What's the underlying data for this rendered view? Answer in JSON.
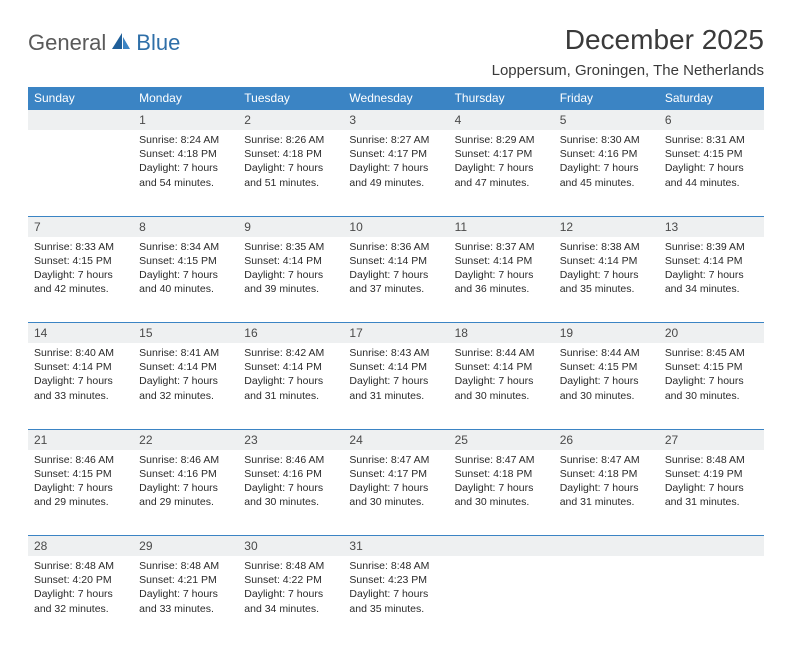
{
  "logo": {
    "general": "General",
    "blue": "Blue"
  },
  "title": "December 2025",
  "location": "Loppersum, Groningen, The Netherlands",
  "colors": {
    "header_bg": "#3b84c4",
    "header_text": "#ffffff",
    "daynum_bg": "#eef0f1",
    "row_border": "#3b84c4",
    "body_text": "#2a2a2a",
    "title_text": "#3a3a3a"
  },
  "weekdays": [
    "Sunday",
    "Monday",
    "Tuesday",
    "Wednesday",
    "Thursday",
    "Friday",
    "Saturday"
  ],
  "weeks": [
    [
      {
        "day": "",
        "lines": [
          "",
          "",
          "",
          ""
        ]
      },
      {
        "day": "1",
        "lines": [
          "Sunrise: 8:24 AM",
          "Sunset: 4:18 PM",
          "Daylight: 7 hours",
          "and 54 minutes."
        ]
      },
      {
        "day": "2",
        "lines": [
          "Sunrise: 8:26 AM",
          "Sunset: 4:18 PM",
          "Daylight: 7 hours",
          "and 51 minutes."
        ]
      },
      {
        "day": "3",
        "lines": [
          "Sunrise: 8:27 AM",
          "Sunset: 4:17 PM",
          "Daylight: 7 hours",
          "and 49 minutes."
        ]
      },
      {
        "day": "4",
        "lines": [
          "Sunrise: 8:29 AM",
          "Sunset: 4:17 PM",
          "Daylight: 7 hours",
          "and 47 minutes."
        ]
      },
      {
        "day": "5",
        "lines": [
          "Sunrise: 8:30 AM",
          "Sunset: 4:16 PM",
          "Daylight: 7 hours",
          "and 45 minutes."
        ]
      },
      {
        "day": "6",
        "lines": [
          "Sunrise: 8:31 AM",
          "Sunset: 4:15 PM",
          "Daylight: 7 hours",
          "and 44 minutes."
        ]
      }
    ],
    [
      {
        "day": "7",
        "lines": [
          "Sunrise: 8:33 AM",
          "Sunset: 4:15 PM",
          "Daylight: 7 hours",
          "and 42 minutes."
        ]
      },
      {
        "day": "8",
        "lines": [
          "Sunrise: 8:34 AM",
          "Sunset: 4:15 PM",
          "Daylight: 7 hours",
          "and 40 minutes."
        ]
      },
      {
        "day": "9",
        "lines": [
          "Sunrise: 8:35 AM",
          "Sunset: 4:14 PM",
          "Daylight: 7 hours",
          "and 39 minutes."
        ]
      },
      {
        "day": "10",
        "lines": [
          "Sunrise: 8:36 AM",
          "Sunset: 4:14 PM",
          "Daylight: 7 hours",
          "and 37 minutes."
        ]
      },
      {
        "day": "11",
        "lines": [
          "Sunrise: 8:37 AM",
          "Sunset: 4:14 PM",
          "Daylight: 7 hours",
          "and 36 minutes."
        ]
      },
      {
        "day": "12",
        "lines": [
          "Sunrise: 8:38 AM",
          "Sunset: 4:14 PM",
          "Daylight: 7 hours",
          "and 35 minutes."
        ]
      },
      {
        "day": "13",
        "lines": [
          "Sunrise: 8:39 AM",
          "Sunset: 4:14 PM",
          "Daylight: 7 hours",
          "and 34 minutes."
        ]
      }
    ],
    [
      {
        "day": "14",
        "lines": [
          "Sunrise: 8:40 AM",
          "Sunset: 4:14 PM",
          "Daylight: 7 hours",
          "and 33 minutes."
        ]
      },
      {
        "day": "15",
        "lines": [
          "Sunrise: 8:41 AM",
          "Sunset: 4:14 PM",
          "Daylight: 7 hours",
          "and 32 minutes."
        ]
      },
      {
        "day": "16",
        "lines": [
          "Sunrise: 8:42 AM",
          "Sunset: 4:14 PM",
          "Daylight: 7 hours",
          "and 31 minutes."
        ]
      },
      {
        "day": "17",
        "lines": [
          "Sunrise: 8:43 AM",
          "Sunset: 4:14 PM",
          "Daylight: 7 hours",
          "and 31 minutes."
        ]
      },
      {
        "day": "18",
        "lines": [
          "Sunrise: 8:44 AM",
          "Sunset: 4:14 PM",
          "Daylight: 7 hours",
          "and 30 minutes."
        ]
      },
      {
        "day": "19",
        "lines": [
          "Sunrise: 8:44 AM",
          "Sunset: 4:15 PM",
          "Daylight: 7 hours",
          "and 30 minutes."
        ]
      },
      {
        "day": "20",
        "lines": [
          "Sunrise: 8:45 AM",
          "Sunset: 4:15 PM",
          "Daylight: 7 hours",
          "and 30 minutes."
        ]
      }
    ],
    [
      {
        "day": "21",
        "lines": [
          "Sunrise: 8:46 AM",
          "Sunset: 4:15 PM",
          "Daylight: 7 hours",
          "and 29 minutes."
        ]
      },
      {
        "day": "22",
        "lines": [
          "Sunrise: 8:46 AM",
          "Sunset: 4:16 PM",
          "Daylight: 7 hours",
          "and 29 minutes."
        ]
      },
      {
        "day": "23",
        "lines": [
          "Sunrise: 8:46 AM",
          "Sunset: 4:16 PM",
          "Daylight: 7 hours",
          "and 30 minutes."
        ]
      },
      {
        "day": "24",
        "lines": [
          "Sunrise: 8:47 AM",
          "Sunset: 4:17 PM",
          "Daylight: 7 hours",
          "and 30 minutes."
        ]
      },
      {
        "day": "25",
        "lines": [
          "Sunrise: 8:47 AM",
          "Sunset: 4:18 PM",
          "Daylight: 7 hours",
          "and 30 minutes."
        ]
      },
      {
        "day": "26",
        "lines": [
          "Sunrise: 8:47 AM",
          "Sunset: 4:18 PM",
          "Daylight: 7 hours",
          "and 31 minutes."
        ]
      },
      {
        "day": "27",
        "lines": [
          "Sunrise: 8:48 AM",
          "Sunset: 4:19 PM",
          "Daylight: 7 hours",
          "and 31 minutes."
        ]
      }
    ],
    [
      {
        "day": "28",
        "lines": [
          "Sunrise: 8:48 AM",
          "Sunset: 4:20 PM",
          "Daylight: 7 hours",
          "and 32 minutes."
        ]
      },
      {
        "day": "29",
        "lines": [
          "Sunrise: 8:48 AM",
          "Sunset: 4:21 PM",
          "Daylight: 7 hours",
          "and 33 minutes."
        ]
      },
      {
        "day": "30",
        "lines": [
          "Sunrise: 8:48 AM",
          "Sunset: 4:22 PM",
          "Daylight: 7 hours",
          "and 34 minutes."
        ]
      },
      {
        "day": "31",
        "lines": [
          "Sunrise: 8:48 AM",
          "Sunset: 4:23 PM",
          "Daylight: 7 hours",
          "and 35 minutes."
        ]
      },
      {
        "day": "",
        "lines": [
          "",
          "",
          "",
          ""
        ]
      },
      {
        "day": "",
        "lines": [
          "",
          "",
          "",
          ""
        ]
      },
      {
        "day": "",
        "lines": [
          "",
          "",
          "",
          ""
        ]
      }
    ]
  ]
}
